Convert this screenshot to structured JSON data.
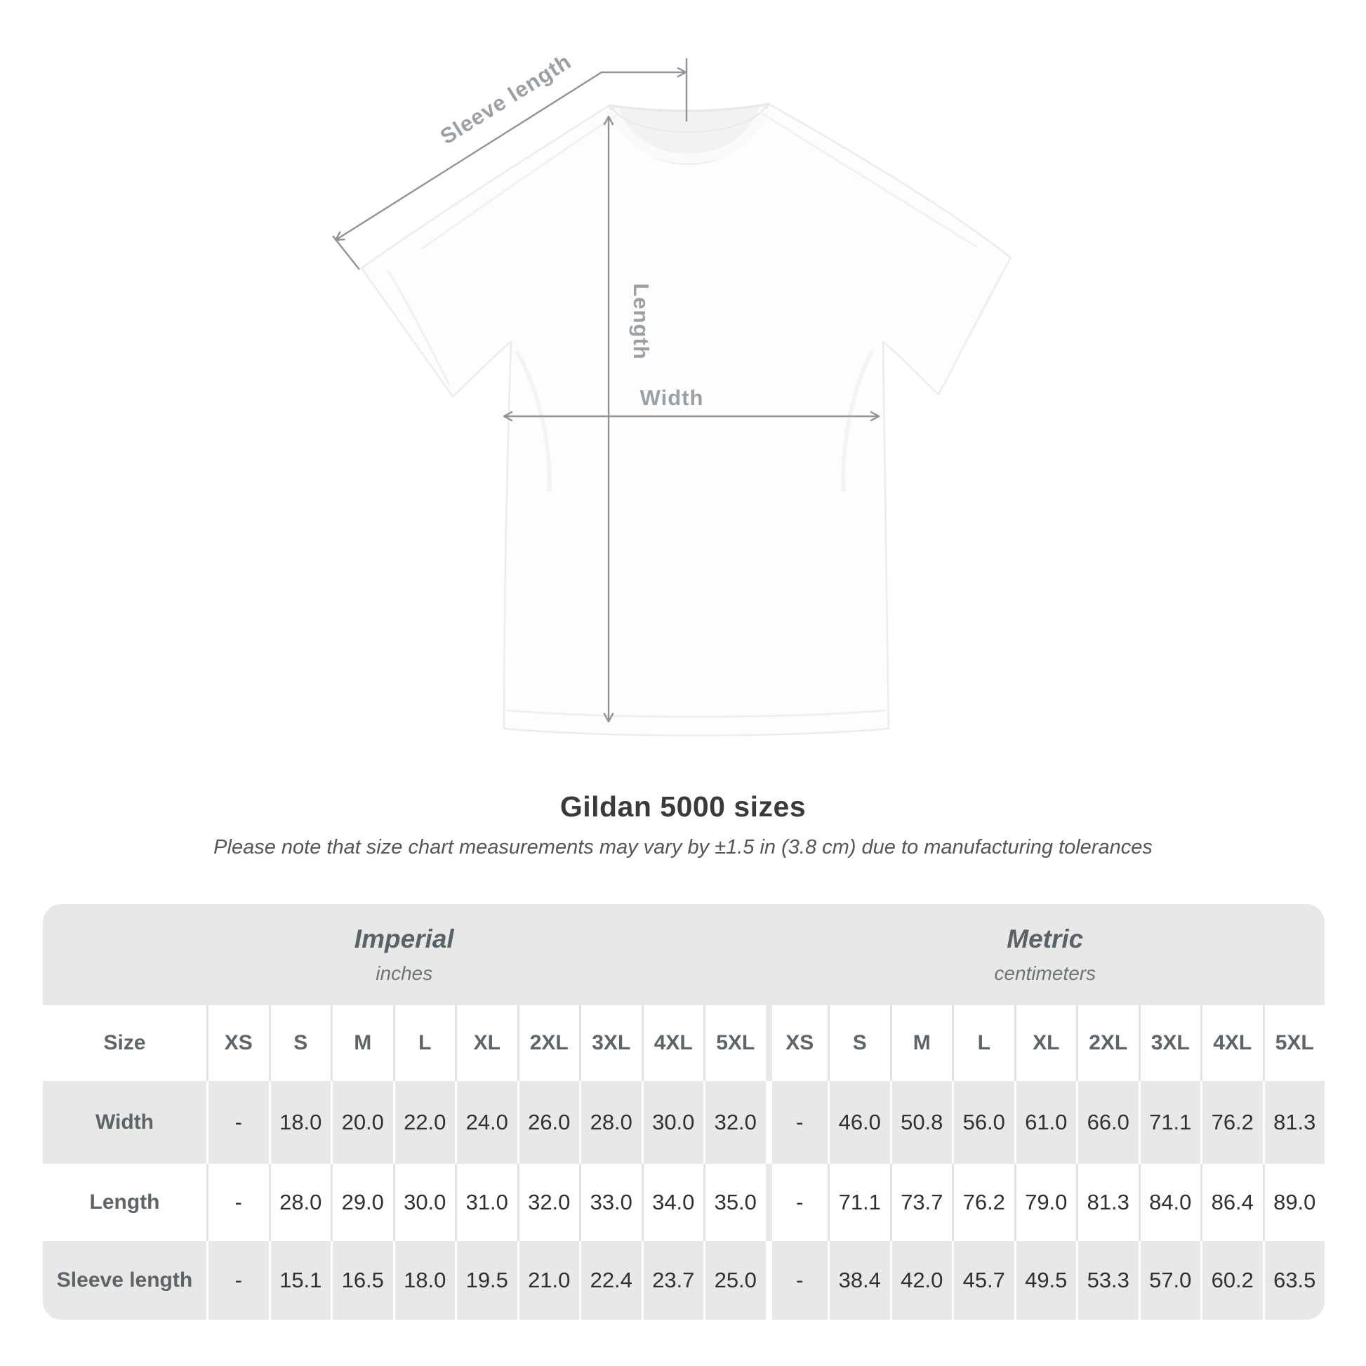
{
  "diagram": {
    "sleeve_length_label": "Sleeve length",
    "length_label": "Length",
    "width_label": "Width",
    "arrow_color": "#8e9497",
    "label_color": "#9aa0a3"
  },
  "header": {
    "title": "Gildan 5000 sizes",
    "subtitle": "Please note that size chart measurements may vary by ±1.5 in (3.8 cm) due to manufacturing tolerances"
  },
  "size_chart": {
    "corner_label": "Size",
    "sections": [
      {
        "id": "imperial",
        "name": "Imperial",
        "unit": "inches"
      },
      {
        "id": "metric",
        "name": "Metric",
        "unit": "centimeters"
      }
    ],
    "sizes": [
      "XS",
      "S",
      "M",
      "L",
      "XL",
      "2XL",
      "3XL",
      "4XL",
      "5XL"
    ],
    "rows": [
      {
        "label": "Width",
        "imperial": [
          "-",
          "18.0",
          "20.0",
          "22.0",
          "24.0",
          "26.0",
          "28.0",
          "30.0",
          "32.0"
        ],
        "metric": [
          "-",
          "46.0",
          "50.8",
          "56.0",
          "61.0",
          "66.0",
          "71.1",
          "76.2",
          "81.3"
        ]
      },
      {
        "label": "Length",
        "imperial": [
          "-",
          "28.0",
          "29.0",
          "30.0",
          "31.0",
          "32.0",
          "33.0",
          "34.0",
          "35.0"
        ],
        "metric": [
          "-",
          "71.1",
          "73.7",
          "76.2",
          "79.0",
          "81.3",
          "84.0",
          "86.4",
          "89.0"
        ]
      },
      {
        "label": "Sleeve length",
        "imperial": [
          "-",
          "15.1",
          "16.5",
          "18.0",
          "19.5",
          "21.0",
          "22.4",
          "23.7",
          "25.0"
        ],
        "metric": [
          "-",
          "38.4",
          "42.0",
          "45.7",
          "49.5",
          "53.3",
          "57.0",
          "60.2",
          "63.5"
        ]
      }
    ],
    "colors": {
      "band_bg": "#e8e8e8",
      "gray_row_bg": "#e8e8e8",
      "label_text": "#5d6569",
      "value_text": "#2f3133"
    }
  }
}
